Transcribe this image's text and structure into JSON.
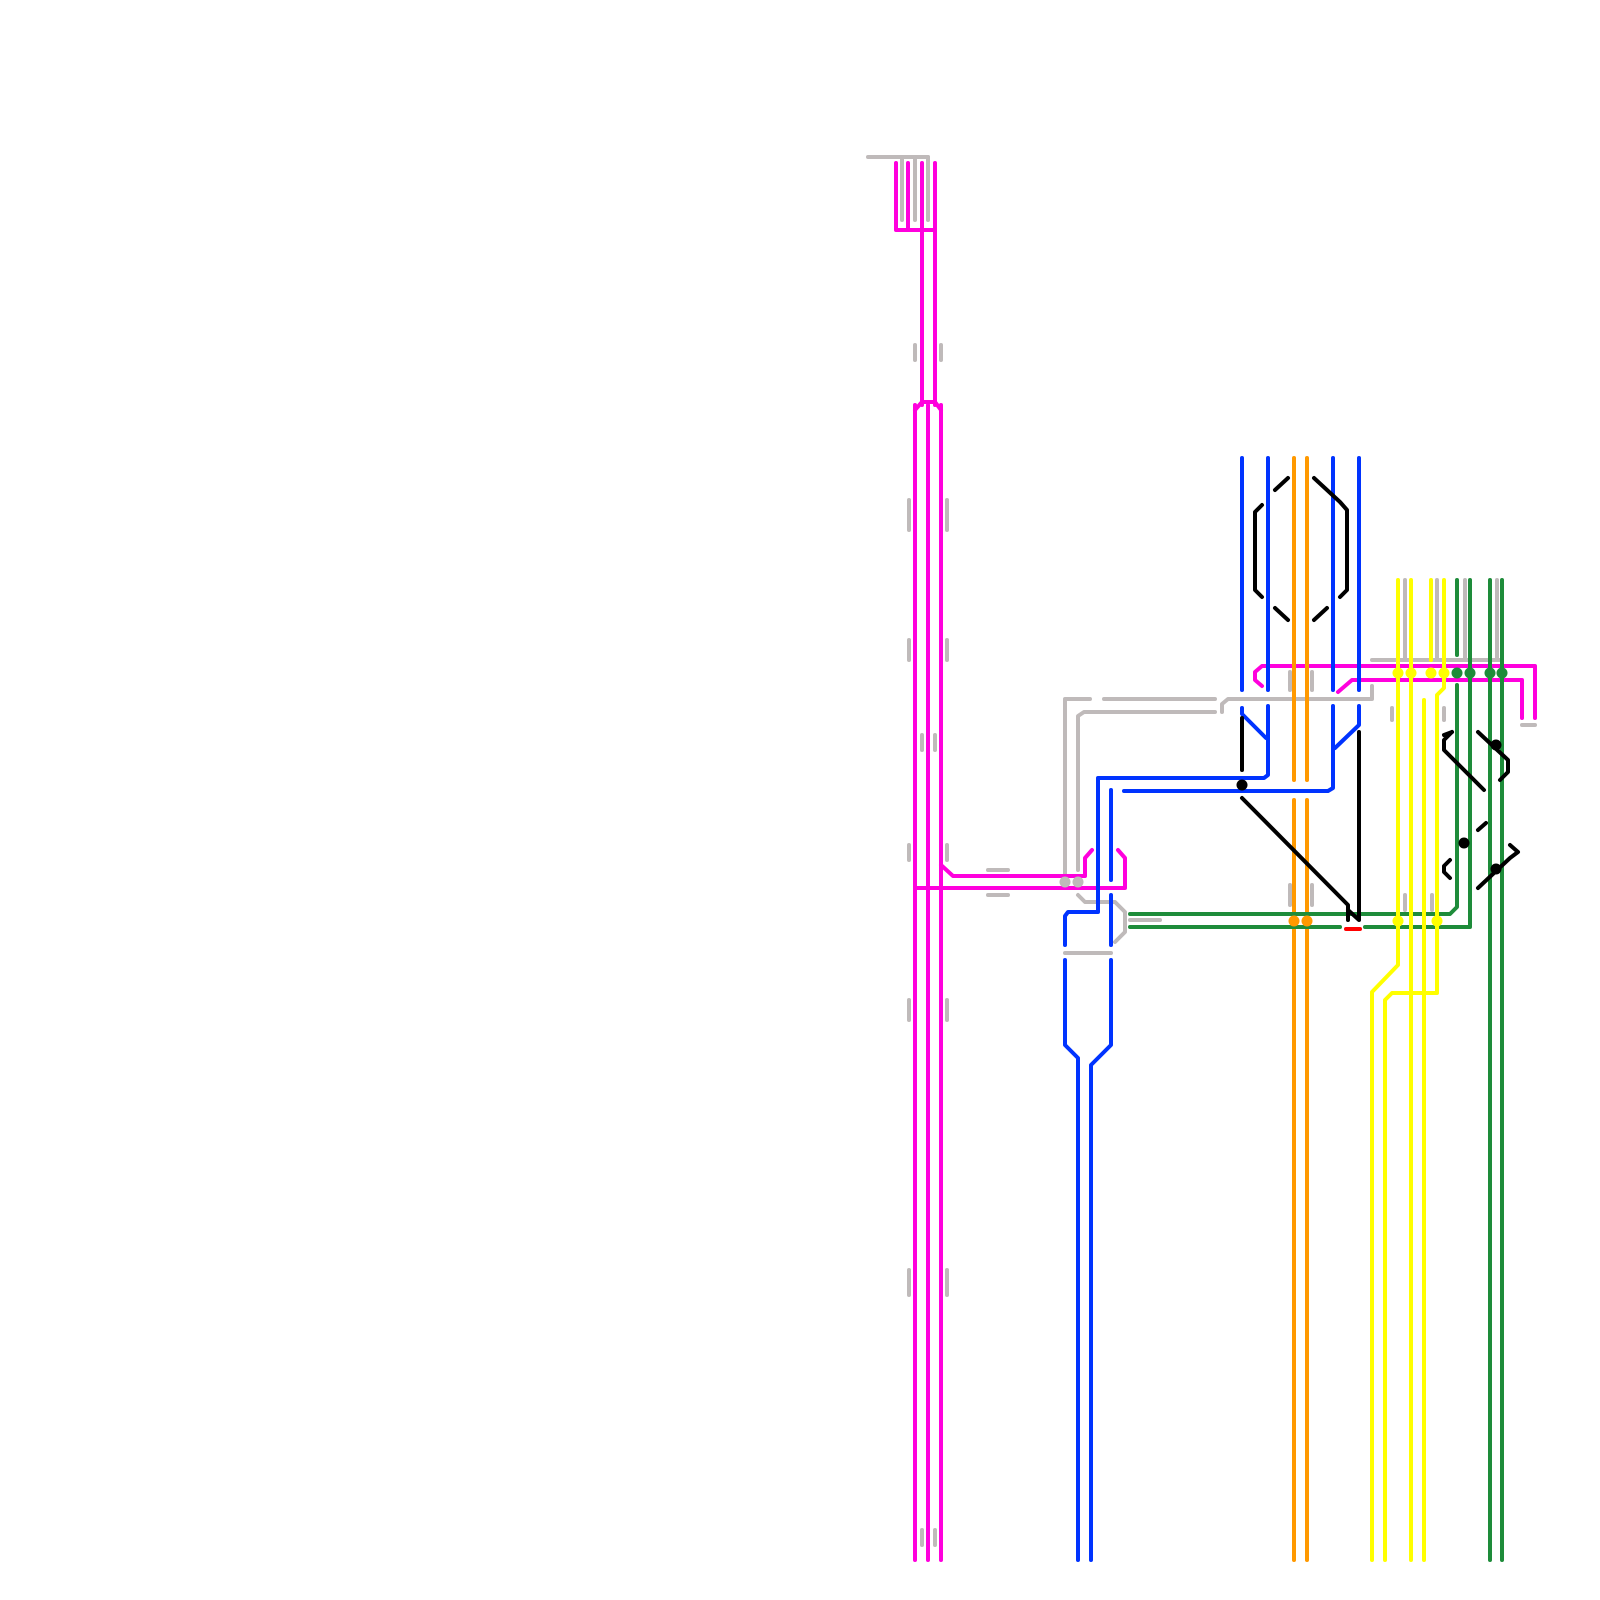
{
  "diagram": {
    "type": "transit-line-schematic",
    "colors": {
      "magenta": "#ff00dd",
      "blue": "#0033ff",
      "orange": "#ff9900",
      "green": "#1e8c3a",
      "yellow": "#ffff00",
      "gray": "#bfbaba",
      "black": "#000000",
      "red": "#ff0000"
    }
  }
}
